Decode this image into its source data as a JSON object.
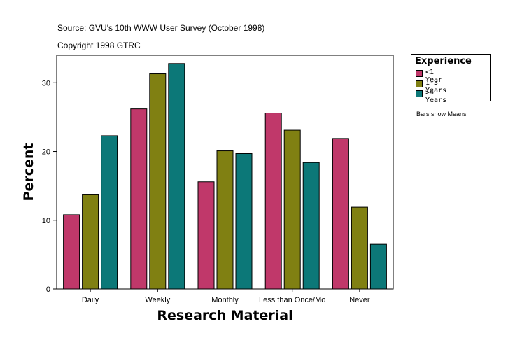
{
  "header": {
    "source": "Source: GVU's 10th WWW User Survey (October 1998)",
    "copyright": "Copyright 1998 GTRC"
  },
  "note": "Bars show Means",
  "colors": {
    "lt1": "#c0386a",
    "y1to3": "#808012",
    "gt4": "#0c7878"
  },
  "chart_data": {
    "type": "bar",
    "xlabel": "Research Material",
    "ylabel": "Percent",
    "ylim": [
      0,
      34
    ],
    "yticks": [
      0,
      10,
      20,
      30
    ],
    "categories": [
      "Daily",
      "Weekly",
      "Monthly",
      "Less than Once/Mo",
      "Never"
    ],
    "legend_title": "Experience",
    "legend_position": "right",
    "series": [
      {
        "name": "<1 Year",
        "color": "#c0386a",
        "values": [
          10.8,
          26.2,
          15.6,
          25.6,
          21.9
        ]
      },
      {
        "name": "1-3 Years",
        "color": "#808012",
        "values": [
          13.7,
          31.3,
          20.1,
          23.1,
          11.9
        ]
      },
      {
        "name": ">4 Years",
        "color": "#0c7878",
        "values": [
          22.3,
          32.8,
          19.7,
          18.4,
          6.5
        ]
      }
    ]
  }
}
